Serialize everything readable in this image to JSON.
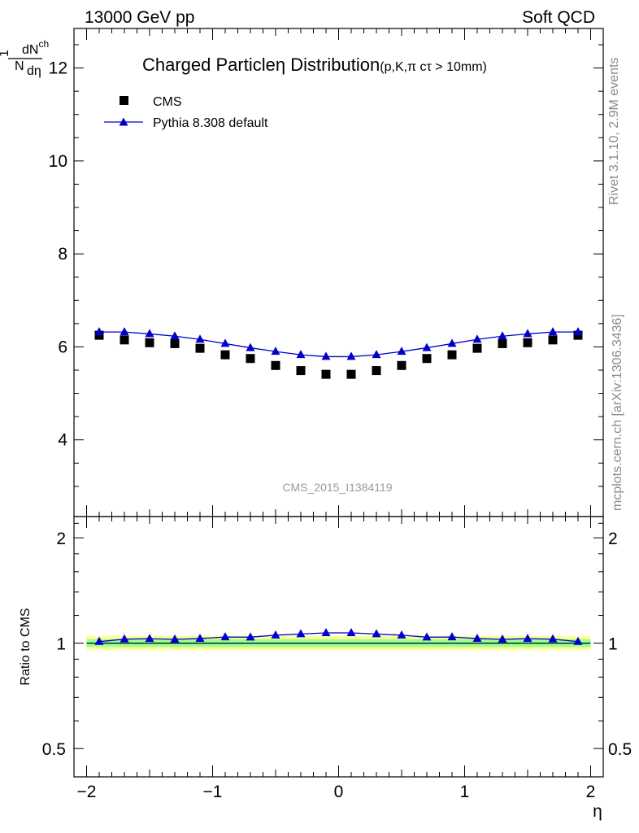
{
  "header": {
    "left": "13000 GeV pp",
    "right": "Soft QCD"
  },
  "side_text": {
    "rivet": "Rivet 3.1.10,  2.9M events",
    "mcplots": "mcplots.cern.ch [arXiv:1306.3436]"
  },
  "chart_data": [
    {
      "type": "scatter",
      "title": "Charged Particleη Distribution",
      "title_suffix": "(p,K,π cτ > 10mm)",
      "analysis_label": "CMS_2015_I1384119",
      "ylabel": {
        "frac_num": "1",
        "frac_den": "N",
        "d_num": "dN",
        "d_sub": "ch",
        "d_den": "dη"
      },
      "xlim": [
        -2.1,
        2.1
      ],
      "ylim": [
        2.35,
        12.85
      ],
      "y_ticks": [
        4,
        6,
        8,
        10,
        12
      ],
      "legend": "top-left",
      "series": [
        {
          "name": "CMS",
          "marker": "square",
          "color": "#000000",
          "x": [
            -1.9,
            -1.7,
            -1.5,
            -1.3,
            -1.1,
            -0.9,
            -0.7,
            -0.5,
            -0.3,
            -0.1,
            0.1,
            0.3,
            0.5,
            0.7,
            0.9,
            1.1,
            1.3,
            1.5,
            1.7,
            1.9
          ],
          "y": [
            6.25,
            6.15,
            6.09,
            6.07,
            5.97,
            5.83,
            5.75,
            5.6,
            5.49,
            5.41,
            5.41,
            5.49,
            5.6,
            5.75,
            5.83,
            5.97,
            6.07,
            6.09,
            6.15,
            6.25
          ]
        },
        {
          "name": "Pythia 8.308 default",
          "marker": "triangle",
          "color": "#0000cc",
          "x": [
            -1.9,
            -1.7,
            -1.5,
            -1.3,
            -1.1,
            -0.9,
            -0.7,
            -0.5,
            -0.3,
            -0.1,
            0.1,
            0.3,
            0.5,
            0.7,
            0.9,
            1.1,
            1.3,
            1.5,
            1.7,
            1.9
          ],
          "y": [
            6.32,
            6.32,
            6.28,
            6.23,
            6.16,
            6.07,
            5.98,
            5.9,
            5.83,
            5.79,
            5.79,
            5.83,
            5.9,
            5.98,
            6.07,
            6.16,
            6.23,
            6.28,
            6.32,
            6.32
          ]
        }
      ]
    },
    {
      "type": "scatter",
      "ylabel": "Ratio to CMS",
      "xlabel": "η",
      "xlim": [
        -2.1,
        2.1
      ],
      "ylim": [
        0.415,
        2.3
      ],
      "y_scale": "log",
      "x_ticks": [
        -2,
        -1,
        0,
        1,
        2
      ],
      "x_tick_labels": [
        "−2",
        "−1",
        "0",
        "1",
        "2"
      ],
      "y_ticks": [
        0.5,
        1,
        2
      ],
      "y_tick_labels": [
        "0.5",
        "1",
        "2"
      ],
      "band_yellow": {
        "x": [
          -2.0,
          2.0
        ],
        "lo": [
          0.955,
          0.955
        ],
        "hi": [
          1.05,
          1.05
        ],
        "color": "#ffff99"
      },
      "band_green": {
        "x": [
          -2.0,
          2.0
        ],
        "lo": [
          0.975,
          0.975
        ],
        "hi": [
          1.027,
          1.027
        ],
        "color": "#99ff99"
      },
      "reference_line": 1,
      "series": [
        {
          "name": "Pythia 8.308 default",
          "marker": "triangle",
          "color": "#0000cc",
          "x": [
            -1.9,
            -1.7,
            -1.5,
            -1.3,
            -1.1,
            -0.9,
            -0.7,
            -0.5,
            -0.3,
            -0.1,
            0.1,
            0.3,
            0.5,
            0.7,
            0.9,
            1.1,
            1.3,
            1.5,
            1.7,
            1.9
          ],
          "y": [
            1.01,
            1.027,
            1.03,
            1.026,
            1.031,
            1.041,
            1.04,
            1.054,
            1.062,
            1.07,
            1.07,
            1.062,
            1.054,
            1.04,
            1.041,
            1.031,
            1.026,
            1.03,
            1.027,
            1.01
          ]
        }
      ]
    }
  ]
}
